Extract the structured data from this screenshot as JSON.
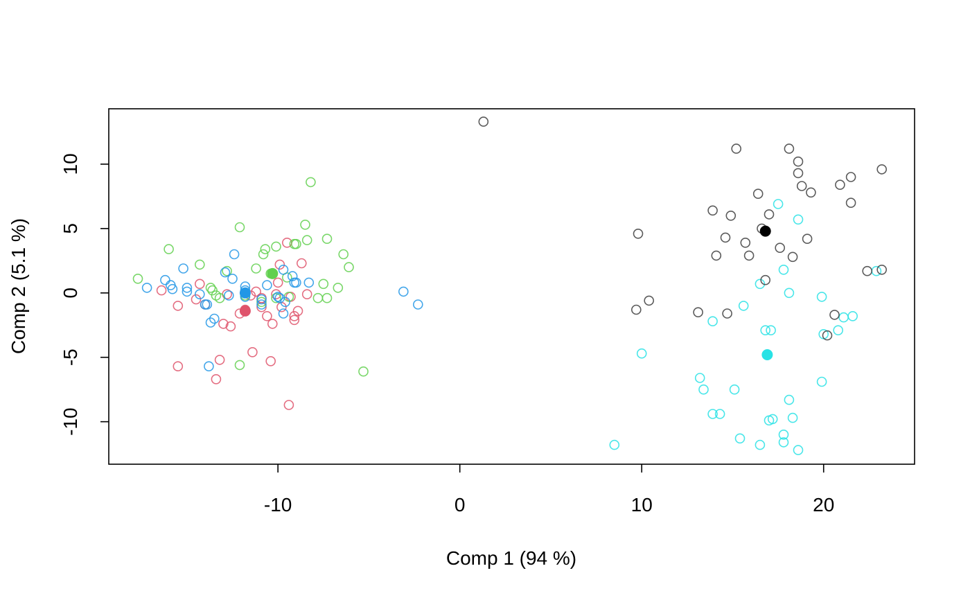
{
  "chart_data": {
    "type": "scatter",
    "title": "",
    "xlabel": "Comp 1 (94 %)",
    "ylabel": "Comp 2 (5.1 %)",
    "xlim": [
      -19.3,
      25
    ],
    "ylim": [
      -13.3,
      14.3
    ],
    "xticks": [
      -10,
      0,
      10,
      20
    ],
    "xtick_labels": [
      "-10",
      "0",
      "10",
      "20"
    ],
    "yticks": [
      -10,
      -5,
      0,
      5,
      10
    ],
    "ytick_labels": [
      "-10",
      "-5",
      "0",
      "5",
      "10"
    ],
    "grid": false,
    "legend": "none",
    "series": [
      {
        "color": "#DF536B",
        "centroid": [
          -11.8,
          -1.4
        ],
        "points": [
          [
            -16.4,
            0.2
          ],
          [
            -15.5,
            -1.0
          ],
          [
            -15.5,
            -5.7
          ],
          [
            -14.3,
            0.7
          ],
          [
            -14.5,
            -0.5
          ],
          [
            -14.0,
            -0.9
          ],
          [
            -13.2,
            -5.2
          ],
          [
            -13.4,
            -6.7
          ],
          [
            -13.0,
            -2.4
          ],
          [
            -12.8,
            -0.1
          ],
          [
            -12.6,
            -2.6
          ],
          [
            -12.1,
            -1.6
          ],
          [
            -11.8,
            -1.3
          ],
          [
            -11.5,
            -0.2
          ],
          [
            -11.4,
            -4.6
          ],
          [
            -11.2,
            0.1
          ],
          [
            -10.9,
            -0.4
          ],
          [
            -10.9,
            -1.1
          ],
          [
            -10.6,
            -1.8
          ],
          [
            -10.4,
            -5.3
          ],
          [
            -10.3,
            -2.4
          ],
          [
            -10.1,
            -0.1
          ],
          [
            -10.0,
            0.8
          ],
          [
            -9.9,
            2.2
          ],
          [
            -9.8,
            -1.1
          ],
          [
            -9.5,
            3.9
          ],
          [
            -9.3,
            -0.3
          ],
          [
            -9.1,
            -1.8
          ],
          [
            -9.1,
            -2.1
          ],
          [
            -9.4,
            -8.7
          ],
          [
            -8.9,
            -1.4
          ],
          [
            -8.7,
            2.3
          ],
          [
            -8.4,
            -0.1
          ]
        ]
      },
      {
        "color": "#61D04F",
        "centroid": [
          -10.3,
          1.5
        ],
        "points": [
          [
            -17.7,
            1.1
          ],
          [
            -16.0,
            3.4
          ],
          [
            -14.3,
            2.2
          ],
          [
            -13.7,
            0.4
          ],
          [
            -13.6,
            0.2
          ],
          [
            -13.4,
            -0.2
          ],
          [
            -13.2,
            -0.4
          ],
          [
            -12.8,
            1.7
          ],
          [
            -12.1,
            -5.6
          ],
          [
            -12.1,
            5.1
          ],
          [
            -11.8,
            -0.2
          ],
          [
            -11.2,
            1.9
          ],
          [
            -10.9,
            -0.7
          ],
          [
            -10.8,
            3.0
          ],
          [
            -10.7,
            3.4
          ],
          [
            -10.4,
            1.5
          ],
          [
            -10.1,
            3.6
          ],
          [
            -10.1,
            -0.4
          ],
          [
            -9.5,
            1.2
          ],
          [
            -9.4,
            -0.3
          ],
          [
            -9.1,
            3.8
          ],
          [
            -9.0,
            3.8
          ],
          [
            -8.5,
            5.3
          ],
          [
            -8.4,
            4.1
          ],
          [
            -8.2,
            8.6
          ],
          [
            -7.8,
            -0.4
          ],
          [
            -7.5,
            0.7
          ],
          [
            -7.3,
            4.2
          ],
          [
            -7.3,
            -0.4
          ],
          [
            -6.7,
            0.4
          ],
          [
            -6.4,
            3.0
          ],
          [
            -6.1,
            2.0
          ],
          [
            -5.3,
            -6.1
          ]
        ]
      },
      {
        "color": "#2297E6",
        "centroid": [
          -11.8,
          0.0
        ],
        "points": [
          [
            -17.2,
            0.4
          ],
          [
            -16.2,
            1.0
          ],
          [
            -15.9,
            0.6
          ],
          [
            -15.8,
            0.3
          ],
          [
            -15.2,
            1.9
          ],
          [
            -15.0,
            0.4
          ],
          [
            -15.0,
            0.1
          ],
          [
            -14.3,
            -0.1
          ],
          [
            -14.0,
            -0.9
          ],
          [
            -13.9,
            -0.9
          ],
          [
            -13.8,
            -5.7
          ],
          [
            -13.7,
            -2.3
          ],
          [
            -13.5,
            -2.0
          ],
          [
            -12.9,
            1.6
          ],
          [
            -12.7,
            -0.2
          ],
          [
            -12.5,
            1.1
          ],
          [
            -12.4,
            3.0
          ],
          [
            -11.8,
            0.5
          ],
          [
            -11.8,
            0.2
          ],
          [
            -11.8,
            -0.3
          ],
          [
            -10.9,
            -0.9
          ],
          [
            -10.9,
            -0.5
          ],
          [
            -10.6,
            0.6
          ],
          [
            -10.0,
            -0.3
          ],
          [
            -9.9,
            -0.4
          ],
          [
            -9.7,
            1.8
          ],
          [
            -9.6,
            -0.7
          ],
          [
            -9.7,
            -1.6
          ],
          [
            -9.2,
            1.3
          ],
          [
            -9.1,
            0.8
          ],
          [
            -9.0,
            0.8
          ],
          [
            -8.3,
            0.8
          ],
          [
            -3.1,
            0.1
          ],
          [
            -2.3,
            -0.9
          ]
        ]
      },
      {
        "color": "#28E2E5",
        "centroid": [
          16.9,
          -4.8
        ],
        "points": [
          [
            8.5,
            -11.8
          ],
          [
            10.0,
            -4.7
          ],
          [
            13.2,
            -6.6
          ],
          [
            13.4,
            -7.5
          ],
          [
            13.9,
            -2.2
          ],
          [
            13.9,
            -9.4
          ],
          [
            14.3,
            -9.4
          ],
          [
            15.1,
            -7.5
          ],
          [
            15.4,
            -11.3
          ],
          [
            15.6,
            -1.0
          ],
          [
            16.5,
            0.7
          ],
          [
            16.5,
            -11.8
          ],
          [
            16.8,
            -2.9
          ],
          [
            17.0,
            -9.9
          ],
          [
            17.1,
            -2.9
          ],
          [
            17.2,
            -9.8
          ],
          [
            17.5,
            6.9
          ],
          [
            17.8,
            1.8
          ],
          [
            17.8,
            -11.0
          ],
          [
            17.8,
            -11.6
          ],
          [
            18.1,
            -8.3
          ],
          [
            18.1,
            0.0
          ],
          [
            18.3,
            -9.7
          ],
          [
            18.6,
            5.7
          ],
          [
            18.6,
            -12.2
          ],
          [
            19.9,
            -6.9
          ],
          [
            19.9,
            -0.3
          ],
          [
            20.0,
            -3.2
          ],
          [
            20.8,
            -2.9
          ],
          [
            21.1,
            -1.9
          ],
          [
            21.6,
            -1.8
          ],
          [
            22.9,
            1.7
          ]
        ]
      },
      {
        "color": "#3D3D3D",
        "centroid": [
          16.8,
          4.8
        ],
        "points": [
          [
            1.3,
            13.3
          ],
          [
            9.7,
            -1.3
          ],
          [
            9.8,
            4.6
          ],
          [
            10.4,
            -0.6
          ],
          [
            13.1,
            -1.5
          ],
          [
            13.9,
            6.4
          ],
          [
            14.1,
            2.9
          ],
          [
            14.6,
            4.3
          ],
          [
            14.7,
            -1.6
          ],
          [
            14.9,
            6.0
          ],
          [
            15.2,
            11.2
          ],
          [
            15.7,
            3.9
          ],
          [
            15.9,
            2.9
          ],
          [
            16.4,
            7.7
          ],
          [
            16.6,
            5.0
          ],
          [
            16.8,
            1.0
          ],
          [
            17.0,
            6.1
          ],
          [
            17.6,
            3.5
          ],
          [
            18.1,
            11.2
          ],
          [
            18.3,
            2.8
          ],
          [
            18.6,
            10.2
          ],
          [
            18.6,
            9.3
          ],
          [
            18.8,
            8.3
          ],
          [
            19.1,
            4.2
          ],
          [
            19.3,
            7.8
          ],
          [
            20.2,
            -3.3
          ],
          [
            20.6,
            -1.7
          ],
          [
            20.9,
            8.4
          ],
          [
            21.5,
            9.0
          ],
          [
            21.5,
            7.0
          ],
          [
            22.4,
            1.7
          ],
          [
            23.2,
            1.8
          ],
          [
            23.2,
            9.6
          ]
        ]
      }
    ],
    "centroid_fill": [
      "#DF536B",
      "#61D04F",
      "#2297E6",
      "#28E2E5",
      "#000000"
    ]
  }
}
